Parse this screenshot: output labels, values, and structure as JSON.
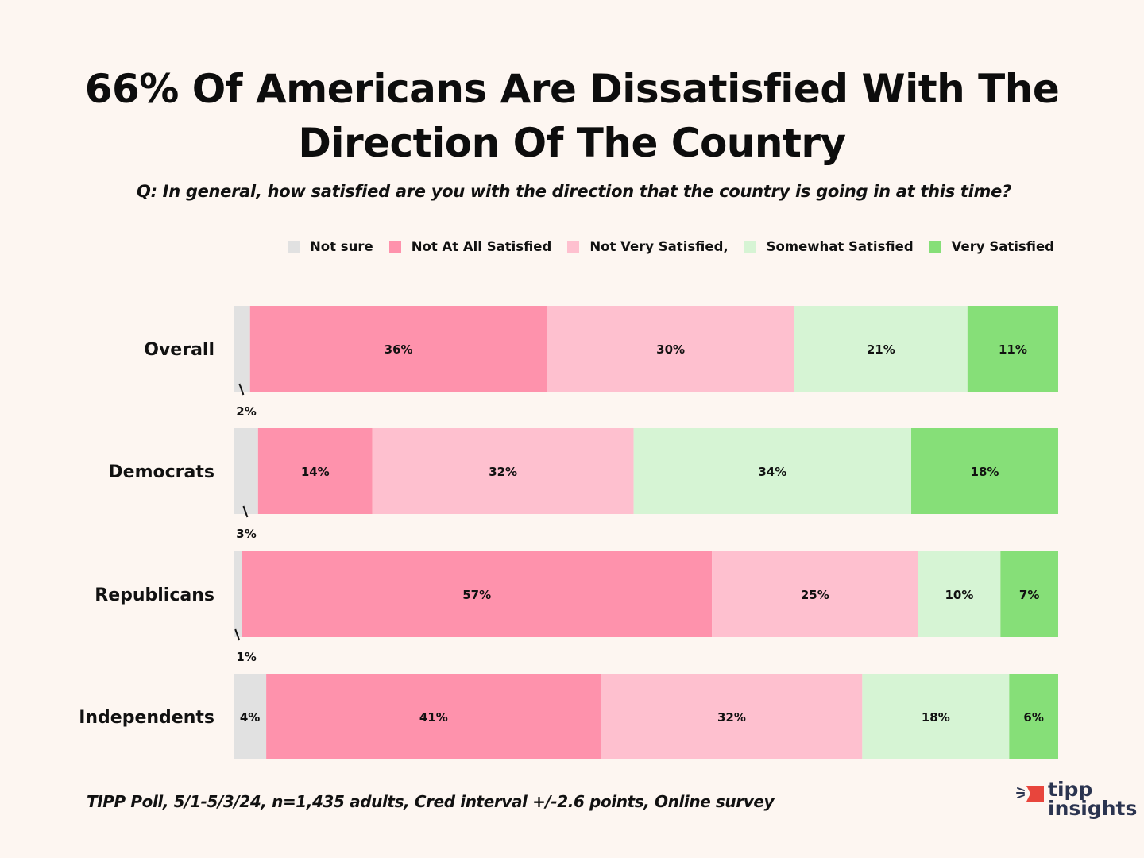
{
  "chart_data": {
    "type": "bar",
    "orientation": "horizontal",
    "stacked": true,
    "title": "66% Of Americans Are Dissatisfied With The Direction Of The Country",
    "title_lines": [
      "66% Of Americans Are Dissatisfied With The",
      "Direction Of The Country"
    ],
    "subtitle": "Q: In general, how satisfied are you with the direction that the country is going in at this time?",
    "xlabel": "",
    "ylabel": "",
    "xlim": [
      0,
      100
    ],
    "grid": false,
    "legend_position": "top",
    "categories": [
      "Overall",
      "Democrats",
      "Republicans",
      "Independents"
    ],
    "series": [
      {
        "name": "Not sure",
        "color": "#e1e1e1",
        "values": [
          2,
          3,
          1,
          4
        ],
        "labels": [
          "2%",
          "3%",
          "1%",
          "4%"
        ],
        "label_outside": [
          true,
          true,
          true,
          false
        ]
      },
      {
        "name": "Not At All Satisfied",
        "color": "#fe92ac",
        "values": [
          36,
          14,
          57,
          41
        ],
        "labels": [
          "36%",
          "14%",
          "57%",
          "41%"
        ]
      },
      {
        "name": "Not Very Satisfied,",
        "color": "#fec0cf",
        "values": [
          30,
          32,
          25,
          32
        ],
        "labels": [
          "30%",
          "32%",
          "25%",
          "32%"
        ]
      },
      {
        "name": "Somewhat Satisfied",
        "color": "#d6f4d4",
        "values": [
          21,
          34,
          10,
          18
        ],
        "labels": [
          "21%",
          "34%",
          "10%",
          "18%"
        ]
      },
      {
        "name": "Very Satisfied",
        "color": "#86df78",
        "values": [
          11,
          18,
          7,
          6
        ],
        "labels": [
          "11%",
          "18%",
          "7%",
          "6%"
        ]
      }
    ]
  },
  "footer": {
    "source": "TIPP Poll, 5/1-5/3/24, n=1,435 adults, Cred interval +/-2.6 points, Online survey"
  },
  "logo": {
    "line1": "tipp",
    "line2": "insights",
    "accent_color": "#e8453c",
    "text_color": "#2b3450"
  }
}
